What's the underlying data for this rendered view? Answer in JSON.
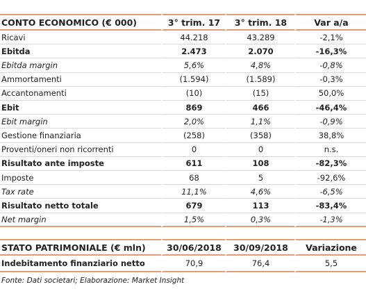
{
  "income_table": {
    "header": [
      "CONTO ECONOMICO (€ 000)",
      "3° trim. 17",
      "3° trim. 18",
      "Var a/a"
    ],
    "rows": [
      {
        "style": "normal",
        "cells": [
          "Ricavi",
          "44.218",
          "43.289",
          "-2,1%"
        ]
      },
      {
        "style": "bold",
        "cells": [
          "Ebitda",
          "2.473",
          "2.070",
          "-16,3%"
        ]
      },
      {
        "style": "italic",
        "cells": [
          "Ebitda margin",
          "5,6%",
          "4,8%",
          "-0,8%"
        ]
      },
      {
        "style": "normal",
        "cells": [
          "Ammortamenti",
          "(1.594)",
          "(1.589)",
          "-0,3%"
        ]
      },
      {
        "style": "normal",
        "cells": [
          "Accantonamenti",
          "(10)",
          "(15)",
          "50,0%"
        ]
      },
      {
        "style": "bold",
        "cells": [
          "Ebit",
          "869",
          "466",
          "-46,4%"
        ]
      },
      {
        "style": "italic",
        "cells": [
          "Ebit margin",
          "2,0%",
          "1,1%",
          "-0,9%"
        ]
      },
      {
        "style": "normal",
        "cells": [
          "Gestione finanziaria",
          "(258)",
          "(358)",
          "38,8%"
        ]
      },
      {
        "style": "normal",
        "cells": [
          "Proventi/oneri non ricorrenti",
          "0",
          "0",
          "n.s."
        ]
      },
      {
        "style": "bold",
        "cells": [
          "Risultato ante imposte",
          "611",
          "108",
          "-82,3%"
        ]
      },
      {
        "style": "normal",
        "cells": [
          "Imposte",
          "68",
          "5",
          "-92,6%"
        ]
      },
      {
        "style": "italic",
        "cells": [
          "Tax rate",
          "11,1%",
          "4,6%",
          "-6,5%"
        ]
      },
      {
        "style": "bold",
        "cells": [
          "Risultato netto totale",
          "679",
          "113",
          "-83,4%"
        ]
      },
      {
        "style": "italic",
        "cells": [
          "Net margin",
          "1,5%",
          "0,3%",
          "-1,3%"
        ]
      }
    ]
  },
  "balance_table": {
    "header": [
      "STATO PATRIMONIALE (€ mln)",
      "30/06/2018",
      "30/09/2018",
      "Variazione"
    ],
    "rows": [
      {
        "style": "bold-label",
        "cells": [
          "Indebitamento finanziario netto",
          "70,9",
          "76,4",
          "5,5"
        ]
      }
    ]
  },
  "footer": "Fonte: Dati societari; Elaborazione: Market Insight"
}
